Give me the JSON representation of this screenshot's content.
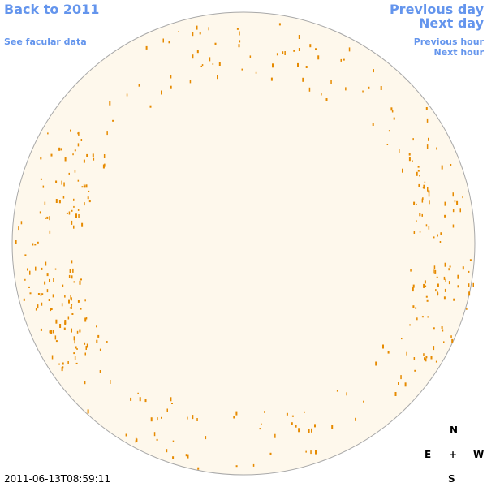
{
  "nav": {
    "back": "Back to 2011",
    "facular": "See facular data",
    "previous_day": "Previous day",
    "next_day": "Next day",
    "previous_hour": "Previous hour",
    "next_hour": "Next hour"
  },
  "timestamp": "2011-06-13T08:59:11",
  "compass": {
    "north": "N",
    "east": "E",
    "center": "+",
    "west": "W",
    "south": "S"
  }
}
